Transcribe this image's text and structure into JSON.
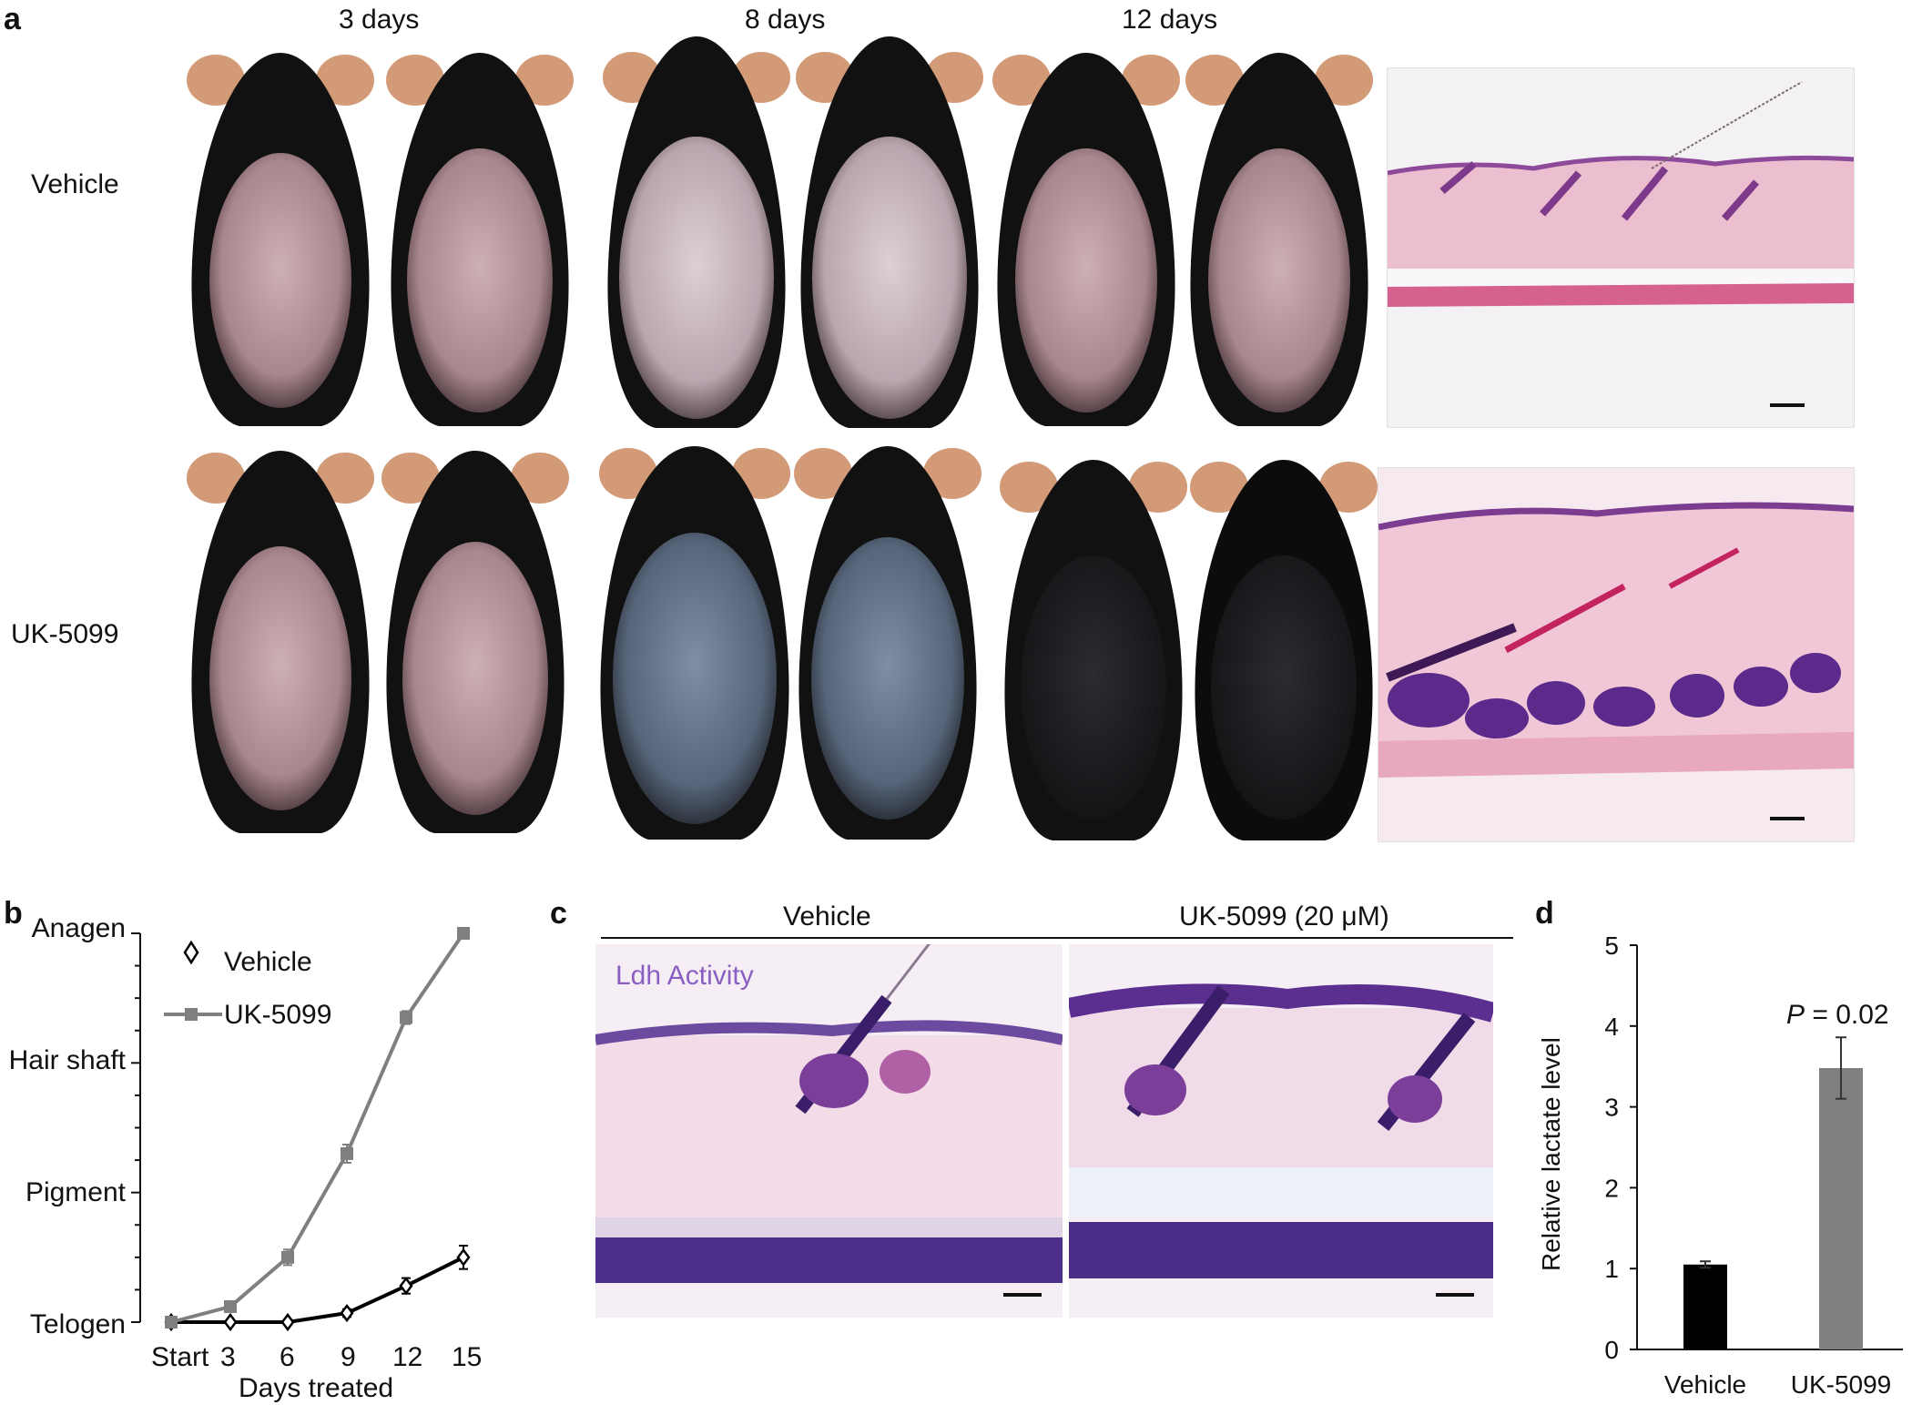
{
  "panel_a": {
    "letter": "a",
    "time_labels": [
      "3 days",
      "8 days",
      "12 days"
    ],
    "row_labels": [
      "Vehicle",
      "UK-5099"
    ]
  },
  "panel_b": {
    "letter": "b",
    "y_categories": [
      "Telogen",
      "Pigment",
      "Hair shaft",
      "Anagen"
    ],
    "x_ticks": [
      "Start",
      "3",
      "6",
      "9",
      "12",
      "15"
    ],
    "xlabel": "Days treated",
    "legend": [
      "Vehicle",
      "UK-5099"
    ]
  },
  "panel_c": {
    "letter": "c",
    "headers": [
      "Vehicle",
      "UK-5099 (20 μM)"
    ],
    "stain_label": "Ldh Activity",
    "stain_color": "#8a5fc1"
  },
  "panel_d": {
    "letter": "d",
    "ylabel": "Relative lactate level",
    "annotation_italic": "P",
    "annotation_rest": " = 0.02"
  },
  "chart_data": [
    {
      "type": "line",
      "xlabel": "Days treated",
      "ylabel": "",
      "x": [
        "Start",
        "3",
        "6",
        "9",
        "12",
        "15"
      ],
      "y_categories": [
        "Telogen",
        "Pigment",
        "Hair shaft",
        "Anagen"
      ],
      "ylim": [
        0,
        3
      ],
      "series": [
        {
          "name": "Vehicle",
          "color": "#000000",
          "marker": "open-diamond",
          "values": [
            0,
            0,
            0,
            0.07,
            0.28,
            0.5
          ],
          "errors": [
            0,
            0,
            0,
            0.03,
            0.06,
            0.09
          ]
        },
        {
          "name": "UK-5099",
          "color": "#7f7f7f",
          "marker": "filled-square",
          "values": [
            0,
            0.12,
            0.5,
            1.3,
            2.35,
            3.0
          ],
          "errors": [
            0,
            0.02,
            0.06,
            0.07,
            0.05,
            0.0
          ]
        }
      ]
    },
    {
      "type": "bar",
      "categories": [
        "Vehicle",
        "UK-5099"
      ],
      "values": [
        1.05,
        3.48
      ],
      "errors": [
        0.04,
        0.38
      ],
      "colors": [
        "#000000",
        "#7f7f7f"
      ],
      "ylabel": "Relative lactate level",
      "ylim": [
        0,
        5
      ],
      "yticks": [
        0,
        1,
        2,
        3,
        4,
        5
      ],
      "annotation": "P = 0.02"
    }
  ]
}
